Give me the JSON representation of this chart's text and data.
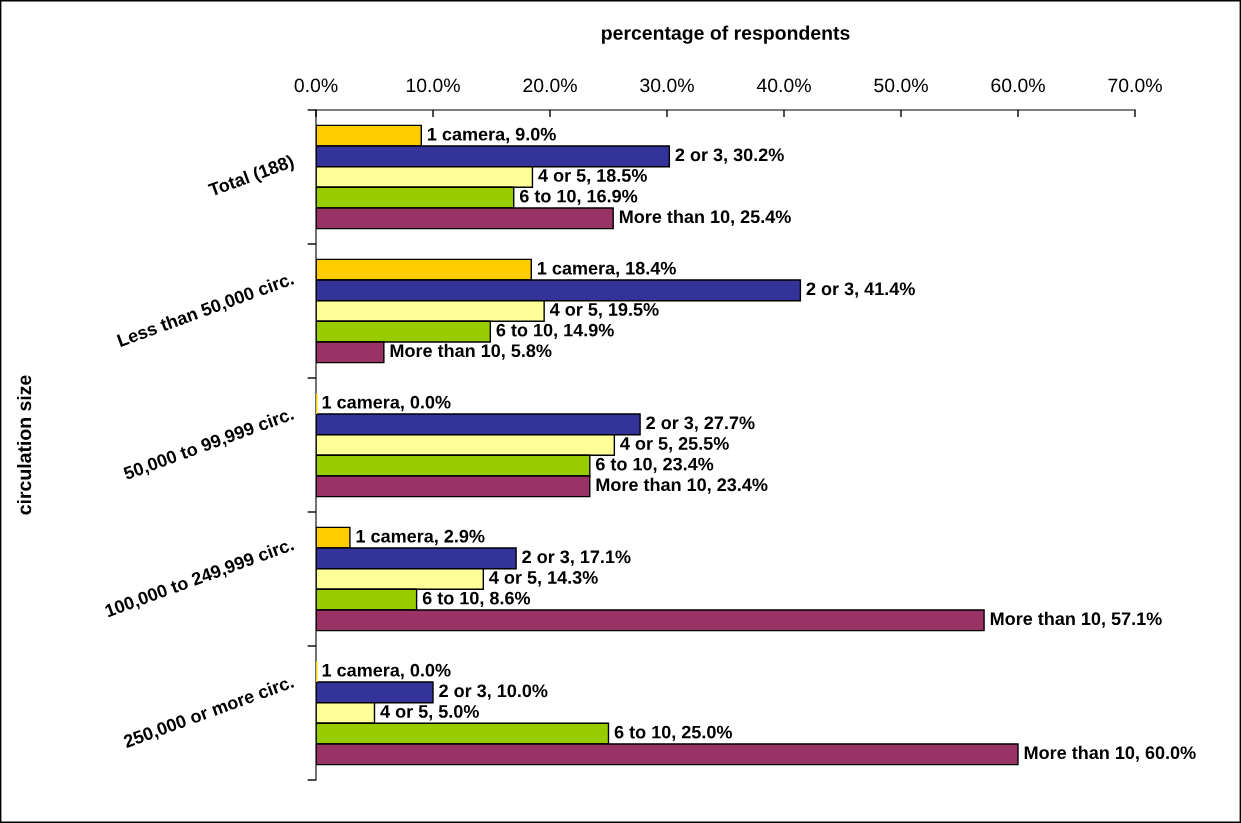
{
  "chart_data": {
    "type": "bar",
    "orientation": "horizontal",
    "xlabel": "percentage of respondents",
    "ylabel": "circulation size",
    "categories": [
      "Total (188)",
      "Less than 50,000 circ.",
      "50,000 to 99,999 circ.",
      "100,000 to 249,999 circ.",
      "250,000 or more circ."
    ],
    "xlim": [
      0,
      70
    ],
    "xticks": [
      {
        "value": 0,
        "label": "0.0%"
      },
      {
        "value": 10,
        "label": "10.0%"
      },
      {
        "value": 20,
        "label": "20.0%"
      },
      {
        "value": 30,
        "label": "30.0%"
      },
      {
        "value": 40,
        "label": "40.0%"
      },
      {
        "value": 50,
        "label": "50.0%"
      },
      {
        "value": 60,
        "label": "60.0%"
      },
      {
        "value": 70,
        "label": "70.0%"
      }
    ],
    "series": [
      {
        "color": "#ffcc00",
        "values": [
          9.0,
          18.4,
          0.0,
          2.9,
          0.0
        ],
        "value_labels": [
          "1 camera, 9.0%",
          "1 camera, 18.4%",
          "1 camera, 0.0%",
          "1 camera, 2.9%",
          "1 camera, 0.0%"
        ]
      },
      {
        "color": "#333399",
        "values": [
          30.2,
          41.4,
          27.7,
          17.1,
          10.0
        ],
        "value_labels": [
          "2 or 3, 30.2%",
          "2 or 3, 41.4%",
          "2 or 3, 27.7%",
          "2 or 3, 17.1%",
          "2 or 3, 10.0%"
        ]
      },
      {
        "color": "#ffff99",
        "values": [
          18.5,
          19.5,
          25.5,
          14.3,
          5.0
        ],
        "value_labels": [
          "4 or 5, 18.5%",
          "4 or 5, 19.5%",
          "4 or 5, 25.5%",
          "4 or 5, 14.3%",
          "4 or 5, 5.0%"
        ]
      },
      {
        "color": "#99cc00",
        "values": [
          16.9,
          14.9,
          23.4,
          8.6,
          25.0
        ],
        "value_labels": [
          "6 to 10, 16.9%",
          "6 to 10, 14.9%",
          "6 to 10, 23.4%",
          "6 to 10, 8.6%",
          "6 to 10, 25.0%"
        ]
      },
      {
        "color": "#993366",
        "values": [
          25.4,
          5.8,
          23.4,
          57.1,
          60.0
        ],
        "value_labels": [
          "More than 10, 25.4%",
          "More than 10, 5.8%",
          "More than 10, 23.4%",
          "More than 10, 57.1%",
          "More than 10, 60.0%"
        ]
      }
    ]
  }
}
